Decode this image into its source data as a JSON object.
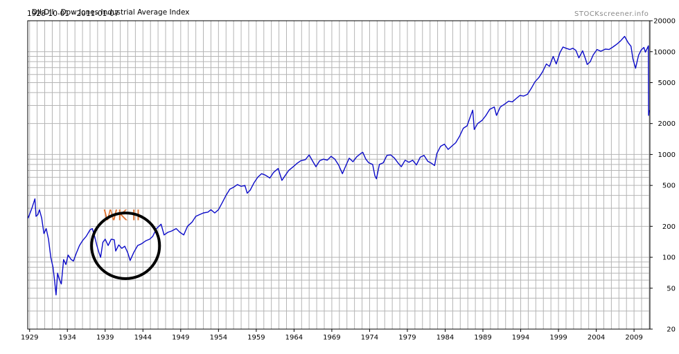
{
  "header": {
    "symbol": "DJI.DJI",
    "name": "Dow Jones Industrial Average Index",
    "date_range": "1928-10-01 - 2011-01-07",
    "watermark": "STOCKscreener.info"
  },
  "colors": {
    "line": "#0a0ac8",
    "grid": "#b4b4b4",
    "annotation_text": "#e0783a",
    "circle": "#000000"
  },
  "chart_data": {
    "type": "line",
    "title": "Dow Jones Industrial Average Index",
    "xlabel": "",
    "ylabel": "",
    "yscale": "log",
    "xlim": [
      1928.75,
      2011.1
    ],
    "ylim": [
      20,
      20000
    ],
    "grid": true,
    "y_axis_side": "right",
    "x_ticks": [
      1929,
      1934,
      1939,
      1944,
      1949,
      1954,
      1959,
      1964,
      1969,
      1974,
      1979,
      1984,
      1989,
      1994,
      1999,
      2004,
      2009
    ],
    "y_ticks": [
      20,
      50,
      100,
      200,
      500,
      1000,
      2000,
      5000,
      10000,
      20000
    ],
    "series": [
      {
        "points": [
          [
            1928.8,
            240
          ],
          [
            1929.3,
            300
          ],
          [
            1929.7,
            370
          ],
          [
            1929.85,
            250
          ],
          [
            1930.1,
            260
          ],
          [
            1930.3,
            290
          ],
          [
            1930.6,
            240
          ],
          [
            1930.9,
            170
          ],
          [
            1931.2,
            190
          ],
          [
            1931.5,
            150
          ],
          [
            1931.8,
            100
          ],
          [
            1932.1,
            80
          ],
          [
            1932.3,
            60
          ],
          [
            1932.5,
            43
          ],
          [
            1932.7,
            70
          ],
          [
            1932.9,
            62
          ],
          [
            1933.2,
            55
          ],
          [
            1933.5,
            95
          ],
          [
            1933.8,
            85
          ],
          [
            1934.1,
            105
          ],
          [
            1934.5,
            95
          ],
          [
            1934.8,
            92
          ],
          [
            1935.2,
            110
          ],
          [
            1935.6,
            130
          ],
          [
            1936.0,
            145
          ],
          [
            1936.5,
            160
          ],
          [
            1937.0,
            185
          ],
          [
            1937.3,
            190
          ],
          [
            1937.6,
            160
          ],
          [
            1937.9,
            130
          ],
          [
            1938.2,
            110
          ],
          [
            1938.4,
            100
          ],
          [
            1938.7,
            140
          ],
          [
            1939.0,
            150
          ],
          [
            1939.4,
            130
          ],
          [
            1939.8,
            150
          ],
          [
            1940.2,
            148
          ],
          [
            1940.4,
            115
          ],
          [
            1940.8,
            132
          ],
          [
            1941.2,
            122
          ],
          [
            1941.6,
            128
          ],
          [
            1942.0,
            110
          ],
          [
            1942.3,
            93
          ],
          [
            1942.8,
            112
          ],
          [
            1943.3,
            130
          ],
          [
            1943.8,
            135
          ],
          [
            1944.4,
            145
          ],
          [
            1944.9,
            150
          ],
          [
            1945.3,
            160
          ],
          [
            1945.8,
            190
          ],
          [
            1946.4,
            210
          ],
          [
            1946.8,
            165
          ],
          [
            1947.3,
            175
          ],
          [
            1947.8,
            180
          ],
          [
            1948.4,
            190
          ],
          [
            1948.9,
            175
          ],
          [
            1949.4,
            165
          ],
          [
            1949.9,
            200
          ],
          [
            1950.5,
            220
          ],
          [
            1951.0,
            250
          ],
          [
            1951.5,
            260
          ],
          [
            1952.0,
            270
          ],
          [
            1952.6,
            275
          ],
          [
            1953.0,
            290
          ],
          [
            1953.5,
            270
          ],
          [
            1954.0,
            290
          ],
          [
            1954.5,
            340
          ],
          [
            1955.0,
            400
          ],
          [
            1955.5,
            460
          ],
          [
            1956.0,
            480
          ],
          [
            1956.5,
            510
          ],
          [
            1957.0,
            490
          ],
          [
            1957.5,
            500
          ],
          [
            1957.8,
            420
          ],
          [
            1958.2,
            450
          ],
          [
            1958.7,
            530
          ],
          [
            1959.2,
            600
          ],
          [
            1959.7,
            650
          ],
          [
            1960.2,
            630
          ],
          [
            1960.8,
            590
          ],
          [
            1961.3,
            670
          ],
          [
            1961.9,
            730
          ],
          [
            1962.4,
            560
          ],
          [
            1962.8,
            620
          ],
          [
            1963.3,
            700
          ],
          [
            1963.9,
            760
          ],
          [
            1964.4,
            820
          ],
          [
            1964.9,
            870
          ],
          [
            1965.5,
            890
          ],
          [
            1966.0,
            990
          ],
          [
            1966.5,
            850
          ],
          [
            1966.9,
            760
          ],
          [
            1967.4,
            870
          ],
          [
            1967.9,
            900
          ],
          [
            1968.4,
            880
          ],
          [
            1968.9,
            960
          ],
          [
            1969.4,
            900
          ],
          [
            1969.9,
            790
          ],
          [
            1970.4,
            650
          ],
          [
            1970.9,
            790
          ],
          [
            1971.3,
            920
          ],
          [
            1971.8,
            850
          ],
          [
            1972.3,
            950
          ],
          [
            1972.9,
            1030
          ],
          [
            1973.1,
            1050
          ],
          [
            1973.5,
            900
          ],
          [
            1973.9,
            830
          ],
          [
            1974.4,
            800
          ],
          [
            1974.7,
            620
          ],
          [
            1974.9,
            580
          ],
          [
            1975.3,
            800
          ],
          [
            1975.8,
            830
          ],
          [
            1976.3,
            980
          ],
          [
            1976.8,
            990
          ],
          [
            1977.3,
            920
          ],
          [
            1977.8,
            820
          ],
          [
            1978.2,
            760
          ],
          [
            1978.7,
            880
          ],
          [
            1979.2,
            840
          ],
          [
            1979.7,
            880
          ],
          [
            1980.2,
            790
          ],
          [
            1980.7,
            940
          ],
          [
            1981.2,
            980
          ],
          [
            1981.7,
            860
          ],
          [
            1982.2,
            820
          ],
          [
            1982.6,
            780
          ],
          [
            1982.9,
            1020
          ],
          [
            1983.4,
            1200
          ],
          [
            1983.9,
            1260
          ],
          [
            1984.4,
            1120
          ],
          [
            1984.9,
            1210
          ],
          [
            1985.4,
            1300
          ],
          [
            1985.9,
            1500
          ],
          [
            1986.4,
            1800
          ],
          [
            1986.9,
            1900
          ],
          [
            1987.3,
            2300
          ],
          [
            1987.65,
            2700
          ],
          [
            1987.85,
            1750
          ],
          [
            1988.3,
            2000
          ],
          [
            1988.9,
            2150
          ],
          [
            1989.4,
            2400
          ],
          [
            1989.9,
            2750
          ],
          [
            1990.5,
            2900
          ],
          [
            1990.8,
            2400
          ],
          [
            1991.3,
            2900
          ],
          [
            1991.9,
            3100
          ],
          [
            1992.4,
            3300
          ],
          [
            1992.9,
            3250
          ],
          [
            1993.4,
            3500
          ],
          [
            1993.9,
            3750
          ],
          [
            1994.4,
            3700
          ],
          [
            1994.9,
            3850
          ],
          [
            1995.4,
            4400
          ],
          [
            1995.9,
            5100
          ],
          [
            1996.4,
            5600
          ],
          [
            1996.9,
            6400
          ],
          [
            1997.4,
            7600
          ],
          [
            1997.8,
            7200
          ],
          [
            1998.3,
            9000
          ],
          [
            1998.7,
            7600
          ],
          [
            1999.2,
            9800
          ],
          [
            1999.6,
            11100
          ],
          [
            2000.0,
            10800
          ],
          [
            2000.5,
            10500
          ],
          [
            2000.9,
            10800
          ],
          [
            2001.3,
            10300
          ],
          [
            2001.7,
            8700
          ],
          [
            2002.2,
            10200
          ],
          [
            2002.6,
            8400
          ],
          [
            2002.8,
            7500
          ],
          [
            2003.2,
            8000
          ],
          [
            2003.6,
            9300
          ],
          [
            2004.1,
            10500
          ],
          [
            2004.6,
            10100
          ],
          [
            2005.2,
            10600
          ],
          [
            2005.7,
            10500
          ],
          [
            2006.2,
            11100
          ],
          [
            2006.7,
            11800
          ],
          [
            2007.2,
            12700
          ],
          [
            2007.75,
            14100
          ],
          [
            2008.2,
            12300
          ],
          [
            2008.6,
            11300
          ],
          [
            2008.85,
            8500
          ],
          [
            2009.2,
            6900
          ],
          [
            2009.6,
            9200
          ],
          [
            2009.95,
            10400
          ],
          [
            2010.3,
            11000
          ],
          [
            2010.5,
            9900
          ],
          [
            2010.75,
            10800
          ],
          [
            2010.9,
            11400
          ],
          [
            2010.93,
            2400
          ],
          [
            2011.0,
            2700
          ]
        ]
      }
    ],
    "annotations": [
      {
        "type": "text",
        "text": "WK II",
        "x": 1941.2,
        "y": 230
      },
      {
        "type": "ellipse",
        "x_range": [
          1937.2,
          1946.2
        ],
        "y_range": [
          62,
          270
        ]
      }
    ]
  }
}
